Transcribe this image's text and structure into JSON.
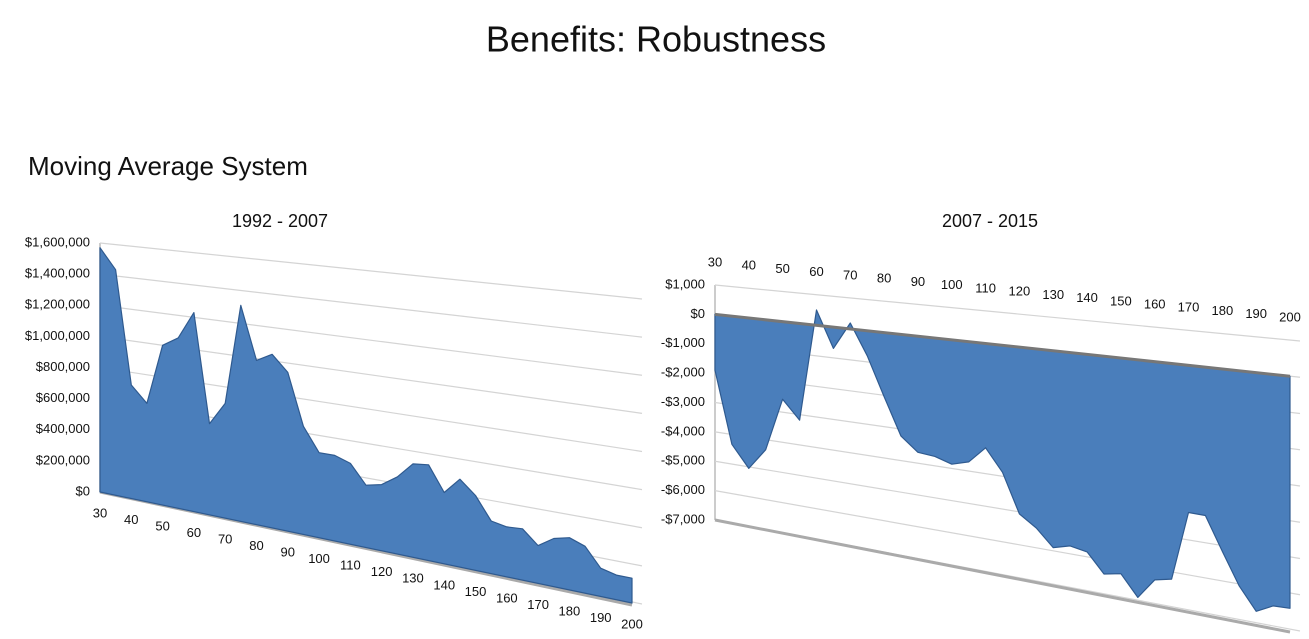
{
  "title": "Benefits: Robustness",
  "subtitle": "Moving Average System",
  "chart_data": [
    {
      "type": "area",
      "title": "1992 - 2007",
      "color": "#4a7ebb",
      "grid": true,
      "category_side": "bottom",
      "categories": [
        30,
        null,
        40,
        null,
        50,
        null,
        60,
        null,
        70,
        null,
        80,
        null,
        90,
        null,
        100,
        null,
        110,
        null,
        120,
        null,
        130,
        null,
        140,
        null,
        150,
        null,
        160,
        null,
        170,
        null,
        180,
        null,
        190,
        null,
        200
      ],
      "values": [
        1570000,
        1440000,
        720000,
        620000,
        1000000,
        1060000,
        1230000,
        560000,
        700000,
        1310000,
        990000,
        1040000,
        945000,
        640000,
        500000,
        500000,
        470000,
        360000,
        380000,
        440000,
        530000,
        540000,
        400000,
        490000,
        415000,
        290000,
        274000,
        280000,
        205000,
        260000,
        280000,
        250000,
        150000,
        130000,
        130000
      ],
      "ylim": [
        0,
        1600000
      ],
      "yticks": [
        {
          "value": 0,
          "label": "$0"
        },
        {
          "value": 200000,
          "label": "$200,000"
        },
        {
          "value": 400000,
          "label": "$400,000"
        },
        {
          "value": 600000,
          "label": "$600,000"
        },
        {
          "value": 800000,
          "label": "$800,000"
        },
        {
          "value": 1000000,
          "label": "$1,000,000"
        },
        {
          "value": 1200000,
          "label": "$1,200,000"
        },
        {
          "value": 1400000,
          "label": "$1,400,000"
        },
        {
          "value": 1600000,
          "label": "$1,600,000"
        }
      ]
    },
    {
      "type": "area",
      "title": "2007 - 2015",
      "color": "#4a7ebb",
      "grid": true,
      "category_side": "top",
      "categories": [
        30,
        null,
        40,
        null,
        50,
        null,
        60,
        null,
        70,
        null,
        80,
        null,
        90,
        null,
        100,
        null,
        110,
        null,
        120,
        null,
        130,
        null,
        140,
        null,
        150,
        null,
        160,
        null,
        170,
        null,
        180,
        null,
        190,
        null,
        200
      ],
      "values": [
        -1900,
        -4330,
        -5050,
        -4330,
        -2570,
        -3180,
        500,
        -690,
        190,
        -800,
        -2040,
        -3220,
        -3650,
        -3700,
        -3860,
        -3710,
        -3200,
        -3870,
        -5050,
        -5390,
        -5890,
        -5750,
        -5840,
        -6400,
        -6300,
        -6900,
        -6300,
        -6190,
        -4200,
        -4210,
        -5150,
        -6040,
        -6660,
        -6420,
        -6400
      ],
      "ylim": [
        -7000,
        1000
      ],
      "yticks": [
        {
          "value": -7000,
          "label": "-$7,000"
        },
        {
          "value": -6000,
          "label": "-$6,000"
        },
        {
          "value": -5000,
          "label": "-$5,000"
        },
        {
          "value": -4000,
          "label": "-$4,000"
        },
        {
          "value": -3000,
          "label": "-$3,000"
        },
        {
          "value": -2000,
          "label": "-$2,000"
        },
        {
          "value": -1000,
          "label": "-$1,000"
        },
        {
          "value": 0,
          "label": "$0"
        },
        {
          "value": 1000,
          "label": "$1,000"
        }
      ]
    }
  ]
}
